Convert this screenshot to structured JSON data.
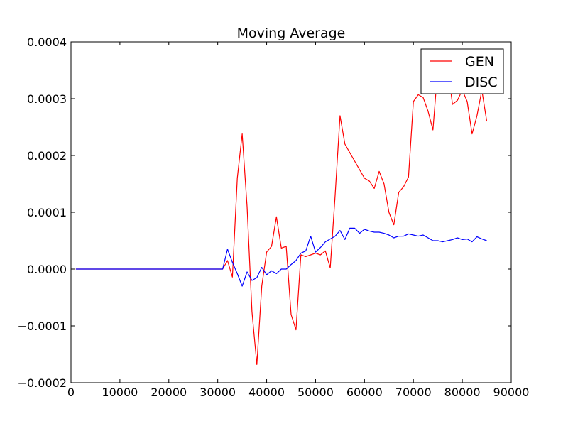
{
  "chart_data": {
    "type": "line",
    "title": "Moving Average",
    "xlabel": "",
    "ylabel": "",
    "xlim": [
      0,
      90000
    ],
    "ylim": [
      -0.0002,
      0.0004
    ],
    "x_ticks": [
      0,
      10000,
      20000,
      30000,
      40000,
      50000,
      60000,
      70000,
      80000,
      90000
    ],
    "x_tick_labels": [
      "0",
      "10000",
      "20000",
      "30000",
      "40000",
      "50000",
      "60000",
      "70000",
      "80000",
      "90000"
    ],
    "y_ticks": [
      -0.0002,
      -0.0001,
      0.0,
      0.0001,
      0.0002,
      0.0003,
      0.0004
    ],
    "y_tick_labels": [
      "−0.0002",
      "−0.0001",
      "0.0000",
      "0.0001",
      "0.0002",
      "0.0003",
      "0.0004"
    ],
    "grid": false,
    "legend_position": "top-right",
    "series": [
      {
        "name": "GEN",
        "color": "#ff0000",
        "x": [
          1000,
          2000,
          3000,
          4000,
          5000,
          6000,
          7000,
          8000,
          9000,
          10000,
          11000,
          12000,
          13000,
          14000,
          15000,
          16000,
          17000,
          18000,
          19000,
          20000,
          21000,
          22000,
          23000,
          24000,
          25000,
          26000,
          27000,
          28000,
          29000,
          30000,
          31000,
          32000,
          33000,
          34000,
          35000,
          36000,
          37000,
          38000,
          39000,
          40000,
          41000,
          42000,
          43000,
          44000,
          45000,
          46000,
          47000,
          48000,
          49000,
          50000,
          51000,
          52000,
          53000,
          54000,
          55000,
          56000,
          57000,
          58000,
          59000,
          60000,
          61000,
          62000,
          63000,
          64000,
          65000,
          66000,
          67000,
          68000,
          69000,
          70000,
          71000,
          72000,
          73000,
          74000,
          75000,
          76000,
          77000,
          78000,
          79000,
          80000,
          81000,
          82000,
          83000,
          84000,
          85000
        ],
        "y": [
          0,
          0,
          0,
          0,
          0,
          0,
          0,
          0,
          0,
          0,
          0,
          0,
          0,
          0,
          0,
          0,
          0,
          0,
          0,
          0,
          0,
          0,
          0,
          0,
          0,
          0,
          0,
          0,
          0,
          0,
          0,
          1.5e-05,
          -1.4e-05,
          0.00016,
          0.000238,
          0.00011,
          -7.5e-05,
          -0.000168,
          -3e-05,
          3e-05,
          4e-05,
          9.2e-05,
          3.7e-05,
          4e-05,
          -8e-05,
          -0.000107,
          2.5e-05,
          2.2e-05,
          2.5e-05,
          2.8e-05,
          2.5e-05,
          3.2e-05,
          2e-06,
          0.00013,
          0.00027,
          0.00022,
          0.000205,
          0.00019,
          0.000175,
          0.00016,
          0.000155,
          0.000142,
          0.000172,
          0.00015,
          0.0001,
          7.8e-05,
          0.000135,
          0.000145,
          0.000162,
          0.000295,
          0.000307,
          0.000302,
          0.000278,
          0.000245,
          0.000355,
          0.000375,
          0.000355,
          0.00029,
          0.000297,
          0.000315,
          0.000295,
          0.000238,
          0.00027,
          0.000315,
          0.00026
        ]
      },
      {
        "name": "DISC",
        "color": "#0000ff",
        "x": [
          1000,
          2000,
          3000,
          4000,
          5000,
          6000,
          7000,
          8000,
          9000,
          10000,
          11000,
          12000,
          13000,
          14000,
          15000,
          16000,
          17000,
          18000,
          19000,
          20000,
          21000,
          22000,
          23000,
          24000,
          25000,
          26000,
          27000,
          28000,
          29000,
          30000,
          31000,
          32000,
          33000,
          34000,
          35000,
          36000,
          37000,
          38000,
          39000,
          40000,
          41000,
          42000,
          43000,
          44000,
          45000,
          46000,
          47000,
          48000,
          49000,
          50000,
          51000,
          52000,
          53000,
          54000,
          55000,
          56000,
          57000,
          58000,
          59000,
          60000,
          61000,
          62000,
          63000,
          64000,
          65000,
          66000,
          67000,
          68000,
          69000,
          70000,
          71000,
          72000,
          73000,
          74000,
          75000,
          76000,
          77000,
          78000,
          79000,
          80000,
          81000,
          82000,
          83000,
          84000,
          85000
        ],
        "y": [
          0,
          0,
          0,
          0,
          0,
          0,
          0,
          0,
          0,
          0,
          0,
          0,
          0,
          0,
          0,
          0,
          0,
          0,
          0,
          0,
          0,
          0,
          0,
          0,
          0,
          0,
          0,
          0,
          0,
          0,
          0,
          3.5e-05,
          1.2e-05,
          -8e-06,
          -3e-05,
          -5e-06,
          -2e-05,
          -1.5e-05,
          3e-06,
          -1e-05,
          -3e-06,
          -8e-06,
          0.0,
          0.0,
          8e-06,
          1.5e-05,
          2.8e-05,
          3.2e-05,
          5.8e-05,
          3e-05,
          3.8e-05,
          4.8e-05,
          5.3e-05,
          5.8e-05,
          6.8e-05,
          5.2e-05,
          7.2e-05,
          7.2e-05,
          6.3e-05,
          7e-05,
          6.7e-05,
          6.5e-05,
          6.5e-05,
          6.3e-05,
          6e-05,
          5.5e-05,
          5.8e-05,
          5.8e-05,
          6.2e-05,
          6e-05,
          5.8e-05,
          6e-05,
          5.5e-05,
          5e-05,
          5e-05,
          4.8e-05,
          5e-05,
          5.2e-05,
          5.5e-05,
          5.2e-05,
          5.3e-05,
          4.8e-05,
          5.7e-05,
          5.3e-05,
          5e-05
        ]
      }
    ]
  }
}
